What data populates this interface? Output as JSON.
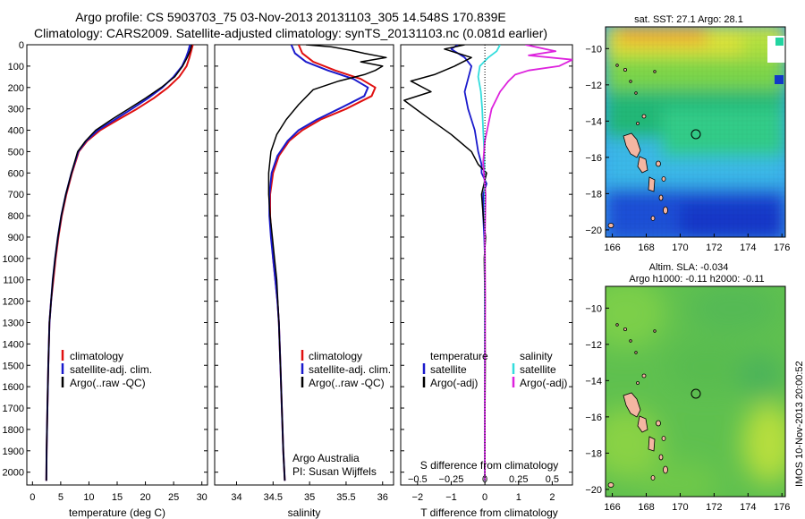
{
  "title_line1": "Argo profile: CS 5903703_75 03-Nov-2013 20131103_305 14.548S 170.839E",
  "title_line2": "Climatology: CARS2009. Satellite-adjusted climatology: synTS_20131103.nc (0.081d earlier)",
  "side_stamp": "IMOS 10-Nov-2013 20:00:52",
  "chart_data": [
    {
      "id": "temperature",
      "type": "line",
      "xlabel": "temperature (deg C)",
      "xlim": [
        -1,
        31
      ],
      "xticks": [
        0,
        5,
        10,
        15,
        20,
        25,
        30
      ],
      "ylim": [
        2060,
        0
      ],
      "yticks": [
        0,
        100,
        200,
        300,
        400,
        500,
        600,
        700,
        800,
        900,
        1000,
        1100,
        1200,
        1300,
        1400,
        1500,
        1600,
        1700,
        1800,
        1900,
        2000
      ],
      "legend": [
        "climatology",
        "satellite-adj. clim.",
        "Argo(..raw -QC)"
      ],
      "colors": {
        "climatology": "#e01010",
        "satellite": "#1a1acc",
        "argo": "#000000"
      },
      "series": [
        {
          "name": "climatology",
          "x": [
            28.4,
            28.1,
            27.8,
            27.3,
            26.0,
            24.0,
            21.5,
            18.5,
            15.2,
            12.0,
            9.7,
            8.2,
            7.0,
            6.0,
            5.2,
            4.6,
            4.1,
            3.7,
            3.3,
            3.0,
            2.8,
            2.65,
            2.5,
            2.45
          ],
          "y": [
            0,
            30,
            60,
            100,
            150,
            200,
            250,
            300,
            350,
            400,
            450,
            500,
            600,
            700,
            800,
            900,
            1000,
            1100,
            1200,
            1300,
            1500,
            1700,
            1900,
            2040
          ]
        },
        {
          "name": "satellite-adj. clim.",
          "x": [
            27.9,
            27.6,
            27.2,
            26.5,
            25.0,
            23.0,
            20.5,
            17.6,
            14.6,
            11.6,
            9.5,
            8.1,
            6.9,
            5.9,
            5.1,
            4.5,
            4.0,
            3.6,
            3.3,
            3.0,
            2.8,
            2.65,
            2.5,
            2.45
          ],
          "y": [
            0,
            30,
            60,
            100,
            150,
            200,
            250,
            300,
            350,
            400,
            450,
            500,
            600,
            700,
            800,
            900,
            1000,
            1100,
            1200,
            1300,
            1500,
            1700,
            1900,
            2040
          ]
        },
        {
          "name": "Argo(..raw -QC)",
          "x": [
            28.2,
            27.9,
            27.4,
            26.6,
            25.2,
            22.8,
            20.0,
            17.0,
            14.0,
            11.2,
            9.4,
            8.0,
            6.9,
            5.9,
            5.1,
            4.5,
            4.0,
            3.6,
            3.3,
            3.0,
            2.8,
            2.65,
            2.5,
            2.45
          ],
          "y": [
            0,
            30,
            60,
            100,
            150,
            200,
            250,
            300,
            350,
            400,
            450,
            500,
            600,
            700,
            800,
            900,
            1000,
            1100,
            1200,
            1300,
            1500,
            1700,
            1900,
            2040
          ]
        }
      ]
    },
    {
      "id": "salinity",
      "type": "line",
      "xlabel": "salinity",
      "xlim": [
        33.7,
        36.15
      ],
      "xticks": [
        34,
        34.5,
        35,
        35.5,
        36
      ],
      "xticklabels": [
        "34",
        "34.5",
        "35",
        "35.5",
        "36"
      ],
      "ylim": [
        2060,
        0
      ],
      "legend": [
        "climatology",
        "satellite-adj. clim.",
        "Argo(..raw -QC)"
      ],
      "annotation": [
        "Argo Australia",
        "PI: Susan Wijffels"
      ],
      "series": [
        {
          "name": "climatology",
          "x": [
            34.85,
            34.9,
            35.05,
            35.35,
            35.7,
            35.9,
            35.85,
            35.5,
            35.15,
            34.9,
            34.72,
            34.58,
            34.5,
            34.46,
            34.46,
            34.48,
            34.5,
            34.53,
            34.56,
            34.58,
            34.6,
            34.62,
            34.64,
            34.66
          ],
          "y": [
            0,
            40,
            80,
            120,
            160,
            200,
            240,
            300,
            350,
            400,
            450,
            520,
            600,
            700,
            800,
            900,
            1000,
            1100,
            1200,
            1300,
            1500,
            1700,
            1900,
            2040
          ]
        },
        {
          "name": "satellite-adj. clim.",
          "x": [
            34.75,
            34.8,
            34.95,
            35.25,
            35.6,
            35.8,
            35.75,
            35.4,
            35.1,
            34.85,
            34.7,
            34.56,
            34.48,
            34.45,
            34.45,
            34.47,
            34.5,
            34.53,
            34.56,
            34.58,
            34.6,
            34.62,
            34.64,
            34.66
          ],
          "y": [
            0,
            40,
            80,
            120,
            160,
            200,
            240,
            300,
            350,
            400,
            450,
            520,
            600,
            700,
            800,
            900,
            1000,
            1100,
            1200,
            1300,
            1500,
            1700,
            1900,
            2040
          ]
        },
        {
          "name": "Argo(..raw -QC)",
          "x": [
            34.95,
            35.3,
            35.55,
            35.75,
            36.05,
            35.7,
            36.0,
            35.9,
            35.75,
            35.4,
            35.05,
            34.85,
            34.68,
            34.55,
            34.47,
            34.44,
            34.44,
            34.46,
            34.49,
            34.52,
            34.55,
            34.58,
            34.6,
            34.62,
            34.64,
            34.66
          ],
          "y": [
            0,
            10,
            25,
            40,
            60,
            80,
            100,
            120,
            140,
            170,
            210,
            280,
            350,
            420,
            500,
            600,
            700,
            800,
            900,
            1000,
            1100,
            1300,
            1500,
            1700,
            1900,
            2040
          ]
        }
      ]
    },
    {
      "id": "difference",
      "type": "line",
      "xlabel": "T difference from climatology",
      "xlabel_top": "S difference from climatology",
      "xlim": [
        -2.5,
        2.6
      ],
      "xticks": [
        -2,
        -1,
        0,
        1,
        2
      ],
      "s_ticks": [
        -0.5,
        -0.25,
        0,
        0.25,
        0.5
      ],
      "s_ticklabels": [
        "−0.5",
        "−0.25",
        "0",
        "0.25",
        "0.5"
      ],
      "t_ticklabels": [
        "−2",
        "−1",
        "0",
        "1",
        "2"
      ],
      "ylim": [
        2060,
        0
      ],
      "legend_left_title": "temperature",
      "legend_right_title": "salinity",
      "legend_left": [
        "satellite",
        "Argo(-adj)"
      ],
      "legend_right": [
        "satellite",
        "Argo(-adj)"
      ],
      "colors": {
        "t_sat": "#1a1acc",
        "t_argo": "#000000",
        "s_sat": "#33dddd",
        "s_argo": "#dd22dd"
      },
      "series": [
        {
          "name": "T satellite",
          "x": [
            -0.8,
            -1.0,
            -0.6,
            -0.4,
            -0.5,
            -0.6,
            -0.5,
            -0.3,
            -0.2,
            -0.1,
            -0.1,
            0.05,
            -0.05,
            -0.05,
            -0.02,
            0,
            0,
            0,
            0,
            0
          ],
          "y": [
            0,
            20,
            60,
            100,
            160,
            220,
            300,
            400,
            500,
            560,
            600,
            650,
            700,
            800,
            900,
            1000,
            1200,
            1500,
            1800,
            2040
          ]
        },
        {
          "name": "T Argo(-adj)",
          "x": [
            -0.6,
            -1.2,
            -0.4,
            -0.9,
            -1.5,
            -2.2,
            -1.6,
            -2.4,
            -1.8,
            -1.0,
            -0.4,
            -0.2,
            0.05,
            -0.1,
            -0.05,
            0.02,
            -0.02,
            0,
            0.01,
            0,
            0
          ],
          "y": [
            0,
            20,
            60,
            100,
            140,
            170,
            220,
            260,
            330,
            420,
            500,
            560,
            600,
            700,
            800,
            900,
            1000,
            1200,
            1500,
            1800,
            2040
          ]
        },
        {
          "name": "S satellite",
          "x": [
            0.45,
            0.35,
            0.1,
            -0.15,
            -0.2,
            -0.12,
            -0.08,
            -0.05,
            -0.02,
            -0.01,
            0,
            0,
            0,
            0
          ],
          "y": [
            0,
            30,
            60,
            100,
            150,
            220,
            300,
            400,
            500,
            600,
            800,
            1000,
            1500,
            2040
          ]
        },
        {
          "name": "S Argo(-adj)",
          "x": [
            1.2,
            2.1,
            1.3,
            2.6,
            2.2,
            1.3,
            0.9,
            0.7,
            0.45,
            0.2,
            0.0,
            -0.05,
            0.02,
            0,
            0.01,
            0,
            0
          ],
          "y": [
            0,
            30,
            50,
            70,
            100,
            120,
            140,
            170,
            220,
            300,
            450,
            550,
            700,
            900,
            1200,
            1600,
            2040
          ]
        }
      ]
    },
    {
      "id": "map_sst",
      "type": "heatmap",
      "title": "sat. SST: 27.1  Argo: 28.1",
      "xticks": [
        166,
        168,
        170,
        172,
        174,
        176
      ],
      "yticks": [
        -10,
        -12,
        -14,
        -16,
        -18,
        -20
      ],
      "xlim": [
        165.6,
        176.2
      ],
      "ylim": [
        -8.8,
        -20.4
      ],
      "marker": [
        170.839,
        -14.548
      ]
    },
    {
      "id": "map_sla",
      "type": "heatmap",
      "title_line1": "Altim. SLA: -0.034",
      "title_line2": "Argo h1000: -0.11  h2000: -0.11",
      "xticks": [
        166,
        168,
        170,
        172,
        174,
        176
      ],
      "yticks": [
        -10,
        -12,
        -14,
        -16,
        -18,
        -20
      ],
      "xlim": [
        165.6,
        176.2
      ],
      "ylim": [
        -8.8,
        -20.4
      ],
      "marker": [
        170.839,
        -14.548
      ]
    }
  ]
}
